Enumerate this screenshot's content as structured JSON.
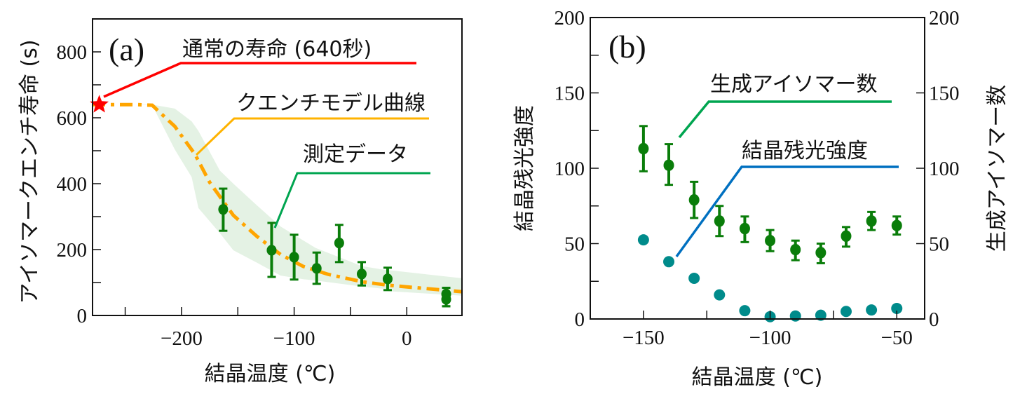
{
  "chart_data": [
    {
      "panel": "(a)",
      "type": "scatter",
      "title": "",
      "xlabel": "結晶温度 (℃)",
      "ylabel": "アイソマークエンチ寿命 (s)",
      "xlim": [
        -279,
        49
      ],
      "ylim": [
        0,
        900
      ],
      "xticks": [
        -200,
        -100,
        0
      ],
      "xticks_minor": [
        -250,
        -150,
        -50
      ],
      "yticks": [
        0,
        200,
        400,
        600,
        800
      ],
      "yticks_minor": [
        100,
        300,
        500,
        700
      ],
      "grid": false,
      "annotations": [
        {
          "text": "通常の寿命 (640秒)",
          "color": "#ff0000",
          "points_to": "normal-lifetime-star"
        },
        {
          "text": "クエンチモデル曲線",
          "color": "#ffb300",
          "points_to": "quench-model-curve"
        },
        {
          "text": "測定データ",
          "color": "#00a550",
          "points_to": "measured-data"
        }
      ],
      "normal_lifetime": {
        "x": -273,
        "y": 640,
        "marker": "star",
        "color": "#ff0000"
      },
      "series": [
        {
          "name": "測定データ",
          "kind": "points-with-errorbars",
          "color": "#0a7d0a",
          "points": [
            {
              "x": -163,
              "y": 322,
              "err_low": 257,
              "err_high": 385
            },
            {
              "x": -120,
              "y": 198,
              "err_low": 117,
              "err_high": 281
            },
            {
              "x": -100,
              "y": 177,
              "err_low": 109,
              "err_high": 245
            },
            {
              "x": -80,
              "y": 143,
              "err_low": 96,
              "err_high": 191
            },
            {
              "x": -60,
              "y": 220,
              "err_low": 162,
              "err_high": 275
            },
            {
              "x": -40,
              "y": 126,
              "err_low": 91,
              "err_high": 162
            },
            {
              "x": -17,
              "y": 111,
              "err_low": 77,
              "err_high": 145
            },
            {
              "x": 35,
              "y": 65,
              "err_low": 28,
              "err_high": 84
            },
            {
              "x": 35,
              "y": 49,
              "err_low": 28,
              "err_high": 84
            }
          ]
        },
        {
          "name": "クエンチモデル曲線",
          "kind": "dash-dot-line",
          "color": "#ffa500",
          "x": [
            -279,
            -240,
            -226,
            -206,
            -188,
            -175,
            -154,
            -133,
            -112,
            -92,
            -70,
            -39,
            -17,
            49
          ],
          "y": [
            640,
            640,
            638,
            574,
            489,
            404,
            304,
            240,
            185,
            149,
            125,
            102,
            92,
            72
          ]
        },
        {
          "name": "model-uncertainty-band",
          "kind": "band",
          "color": "#d8ecd8",
          "x": [
            -240,
            -226,
            -206,
            -191,
            -185,
            -166,
            -154,
            -133,
            -112,
            -92,
            -81,
            -40,
            -12,
            -17,
            49
          ],
          "upper": [
            640,
            640,
            628,
            589,
            560,
            440,
            400,
            334,
            270,
            228,
            205,
            150,
            134,
            138,
            113
          ],
          "lower": [
            640,
            638,
            504,
            420,
            326,
            250,
            198,
            160,
            121,
            110,
            106,
            88,
            78,
            74,
            60
          ]
        }
      ]
    },
    {
      "panel": "(b)",
      "type": "scatter",
      "title": "",
      "xlabel": "結晶温度 (℃)",
      "ylabel": "結晶残光強度",
      "ylabel_right": "生成アイソマー数",
      "xlim": [
        -171,
        -39
      ],
      "ylim": [
        0,
        200
      ],
      "ylim_right": [
        0,
        200
      ],
      "xticks": [
        -150,
        -100,
        -50
      ],
      "xticks_minor": [
        -125,
        -75
      ],
      "yticks": [
        0,
        50,
        100,
        150,
        200
      ],
      "yticks_minor": [
        25,
        75,
        125,
        175
      ],
      "grid": false,
      "annotations": [
        {
          "text": "生成アイソマー数",
          "color": "#00a550",
          "points_to": "isomer-count"
        },
        {
          "text": "結晶残光強度",
          "color": "#0070c0",
          "points_to": "afterglow-intensity"
        }
      ],
      "series": [
        {
          "name": "生成アイソマー数",
          "axis": "right",
          "kind": "points-with-errorbars",
          "color": "#0a7d0a",
          "points": [
            {
              "x": -150,
              "y": 113,
              "err_low": 98,
              "err_high": 128
            },
            {
              "x": -140,
              "y": 102,
              "err_low": 89,
              "err_high": 116
            },
            {
              "x": -130,
              "y": 79,
              "err_low": 67,
              "err_high": 91
            },
            {
              "x": -120,
              "y": 65,
              "err_low": 55,
              "err_high": 75
            },
            {
              "x": -110,
              "y": 60,
              "err_low": 51,
              "err_high": 68
            },
            {
              "x": -100,
              "y": 52,
              "err_low": 45,
              "err_high": 59
            },
            {
              "x": -90,
              "y": 46,
              "err_low": 39,
              "err_high": 52
            },
            {
              "x": -80,
              "y": 44,
              "err_low": 37,
              "err_high": 50
            },
            {
              "x": -70,
              "y": 55,
              "err_low": 48,
              "err_high": 61
            },
            {
              "x": -60,
              "y": 65,
              "err_low": 59,
              "err_high": 71
            },
            {
              "x": -50,
              "y": 62,
              "err_low": 56,
              "err_high": 68
            }
          ]
        },
        {
          "name": "結晶残光強度",
          "axis": "left",
          "kind": "points",
          "color": "#008b8b",
          "points": [
            {
              "x": -150,
              "y": 52.5
            },
            {
              "x": -140,
              "y": 38
            },
            {
              "x": -130,
              "y": 27
            },
            {
              "x": -120,
              "y": 16
            },
            {
              "x": -110,
              "y": 5.5
            },
            {
              "x": -100,
              "y": 1.5
            },
            {
              "x": -90,
              "y": 2
            },
            {
              "x": -80,
              "y": 2.5
            },
            {
              "x": -70,
              "y": 5
            },
            {
              "x": -60,
              "y": 6
            },
            {
              "x": -50,
              "y": 7
            }
          ]
        }
      ]
    }
  ]
}
